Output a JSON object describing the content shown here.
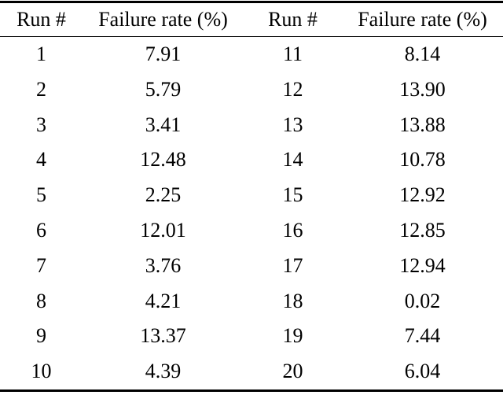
{
  "table": {
    "columns": [
      "Run #",
      "Failure rate (%)",
      "Run #",
      "Failure rate (%)"
    ],
    "rows": [
      [
        "1",
        "7.91",
        "11",
        "8.14"
      ],
      [
        "2",
        "5.79",
        "12",
        "13.90"
      ],
      [
        "3",
        "3.41",
        "13",
        "13.88"
      ],
      [
        "4",
        "12.48",
        "14",
        "10.78"
      ],
      [
        "5",
        "2.25",
        "15",
        "12.92"
      ],
      [
        "6",
        "12.01",
        "16",
        "12.85"
      ],
      [
        "7",
        "3.76",
        "17",
        "12.94"
      ],
      [
        "8",
        "4.21",
        "18",
        "0.02"
      ],
      [
        "9",
        "13.37",
        "19",
        "7.44"
      ],
      [
        "10",
        "4.39",
        "20",
        "6.04"
      ]
    ]
  },
  "colors": {
    "text": "#000000",
    "background": "#ffffff",
    "rule": "#000000"
  },
  "chart_data": {
    "type": "table",
    "columns": [
      "Run #",
      "Failure rate (%)"
    ],
    "runs": [
      1,
      2,
      3,
      4,
      5,
      6,
      7,
      8,
      9,
      10,
      11,
      12,
      13,
      14,
      15,
      16,
      17,
      18,
      19,
      20
    ],
    "failure_rates": [
      7.91,
      5.79,
      3.41,
      12.48,
      2.25,
      12.01,
      3.76,
      4.21,
      13.37,
      4.39,
      8.14,
      13.9,
      13.88,
      10.78,
      12.92,
      12.85,
      12.94,
      0.02,
      7.44,
      6.04
    ],
    "title": "",
    "layout": "two-column split table, values centered, booktabs rules"
  }
}
